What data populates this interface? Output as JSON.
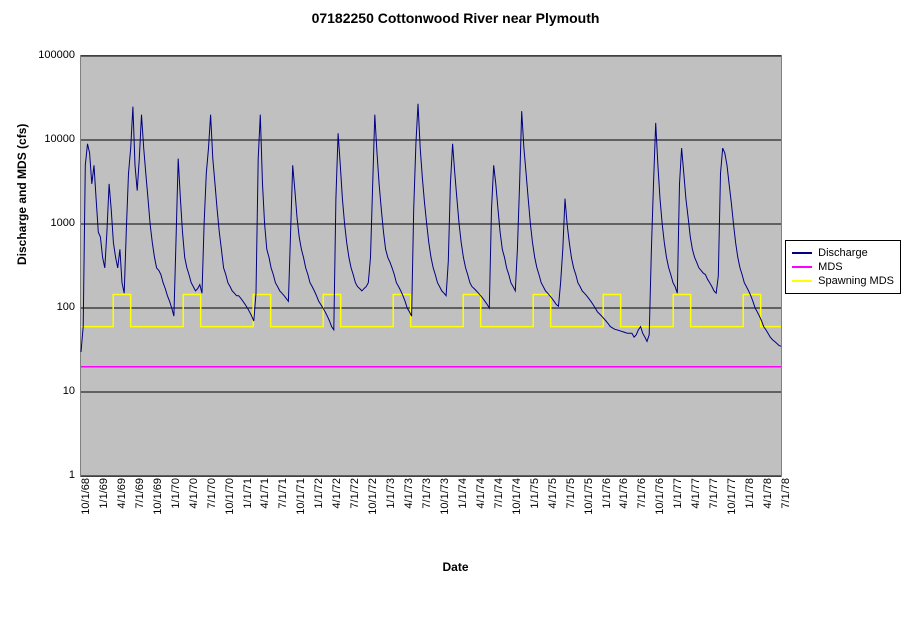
{
  "title": "07182250 Cottonwood River near Plymouth",
  "x_axis_label": "Date",
  "y_axis_label": "Discharge and MDS (cfs)",
  "background_color": "#ffffff",
  "plot_background_color": "#c0c0c0",
  "grid_color": "#000000",
  "title_fontsize": 14,
  "label_fontsize": 12,
  "tick_fontsize": 11,
  "y_scale": "log",
  "y_lim": [
    1,
    100000
  ],
  "y_ticks": [
    1,
    10,
    100,
    1000,
    10000,
    100000
  ],
  "y_tick_labels": [
    "1",
    "10",
    "100",
    "1000",
    "10000",
    "100000"
  ],
  "x_tick_labels": [
    "10/1/68",
    "1/1/69",
    "4/1/69",
    "7/1/69",
    "10/1/69",
    "1/1/70",
    "4/1/70",
    "7/1/70",
    "10/1/70",
    "1/1/71",
    "4/1/71",
    "7/1/71",
    "10/1/71",
    "1/1/72",
    "4/1/72",
    "7/1/72",
    "10/1/72",
    "1/1/73",
    "4/1/73",
    "7/1/73",
    "10/1/73",
    "1/1/74",
    "4/1/74",
    "7/1/74",
    "10/1/74",
    "1/1/75",
    "4/1/75",
    "7/1/75",
    "10/1/75",
    "1/1/76",
    "4/1/76",
    "7/1/76",
    "10/1/76",
    "1/1/77",
    "4/1/77",
    "7/1/77",
    "10/1/77",
    "1/1/78",
    "4/1/78",
    "7/1/78"
  ],
  "legend": {
    "items": [
      {
        "label": "Discharge",
        "color": "#000080"
      },
      {
        "label": "MDS",
        "color": "#ff00ff"
      },
      {
        "label": "Spawning MDS",
        "color": "#ffff00"
      }
    ]
  },
  "series": {
    "discharge": {
      "color": "#000080",
      "line_width": 1,
      "data": [
        30,
        60,
        5000,
        9000,
        7000,
        3000,
        5000,
        2000,
        800,
        700,
        400,
        300,
        800,
        3000,
        1500,
        600,
        400,
        300,
        500,
        200,
        150,
        900,
        4000,
        8000,
        25000,
        5000,
        2500,
        6000,
        20000,
        8000,
        4000,
        2000,
        1000,
        600,
        400,
        300,
        280,
        250,
        200,
        170,
        140,
        120,
        100,
        80,
        700,
        6000,
        2000,
        800,
        400,
        300,
        250,
        200,
        180,
        160,
        170,
        190,
        150,
        1000,
        4000,
        8000,
        20000,
        6000,
        3000,
        1500,
        800,
        500,
        300,
        250,
        200,
        180,
        160,
        150,
        140,
        140,
        130,
        120,
        110,
        100,
        90,
        80,
        70,
        150,
        6000,
        20000,
        3000,
        1000,
        500,
        400,
        300,
        250,
        200,
        180,
        160,
        150,
        140,
        130,
        120,
        800,
        5000,
        2500,
        1200,
        700,
        500,
        400,
        300,
        250,
        200,
        180,
        160,
        140,
        120,
        110,
        100,
        90,
        80,
        70,
        60,
        55,
        2000,
        12000,
        5000,
        2000,
        1000,
        600,
        400,
        300,
        250,
        200,
        180,
        170,
        160,
        170,
        180,
        200,
        400,
        3000,
        20000,
        7000,
        3000,
        1500,
        800,
        500,
        400,
        350,
        300,
        250,
        200,
        180,
        160,
        140,
        120,
        100,
        90,
        80,
        1500,
        9000,
        27000,
        8000,
        3500,
        1800,
        1000,
        600,
        400,
        300,
        250,
        200,
        180,
        160,
        150,
        140,
        360,
        3000,
        9000,
        4000,
        2000,
        1000,
        600,
        400,
        300,
        250,
        200,
        180,
        170,
        160,
        150,
        140,
        130,
        120,
        110,
        100,
        1500,
        5000,
        3000,
        1500,
        800,
        500,
        400,
        300,
        250,
        200,
        180,
        160,
        500,
        3000,
        22000,
        8000,
        4000,
        2000,
        1000,
        600,
        400,
        300,
        250,
        200,
        180,
        160,
        150,
        140,
        130,
        120,
        110,
        105,
        200,
        500,
        2000,
        1000,
        600,
        400,
        300,
        250,
        200,
        180,
        160,
        150,
        140,
        130,
        120,
        110,
        100,
        90,
        85,
        80,
        75,
        70,
        65,
        60,
        58,
        56,
        55,
        54,
        53,
        52,
        51,
        50,
        50,
        50,
        45,
        48,
        55,
        60,
        50,
        45,
        40,
        48,
        500,
        3000,
        16000,
        5000,
        2000,
        1000,
        600,
        400,
        300,
        250,
        200,
        180,
        150,
        3000,
        8000,
        4000,
        2000,
        1200,
        700,
        500,
        400,
        350,
        300,
        280,
        260,
        250,
        220,
        200,
        180,
        160,
        150,
        240,
        4000,
        8000,
        7000,
        5000,
        3000,
        1800,
        1000,
        600,
        400,
        300,
        250,
        200,
        180,
        160,
        140,
        120,
        100,
        90,
        80,
        70,
        60,
        55,
        50,
        45,
        42,
        40,
        38,
        36,
        35
      ]
    },
    "mds": {
      "color": "#ff00ff",
      "line_width": 1.5,
      "value": 20
    },
    "spawning_mds": {
      "color": "#ffff00",
      "line_width": 1.5,
      "low": 60,
      "high": 145,
      "segments": [
        [
          0.0,
          0.046,
          60
        ],
        [
          0.046,
          0.071,
          145
        ],
        [
          0.071,
          0.1,
          60
        ],
        [
          0.1,
          0.146,
          60
        ],
        [
          0.146,
          0.171,
          145
        ],
        [
          0.171,
          0.2,
          60
        ],
        [
          0.2,
          0.246,
          60
        ],
        [
          0.246,
          0.271,
          145
        ],
        [
          0.271,
          0.3,
          60
        ],
        [
          0.3,
          0.346,
          60
        ],
        [
          0.346,
          0.371,
          145
        ],
        [
          0.371,
          0.4,
          60
        ],
        [
          0.4,
          0.446,
          60
        ],
        [
          0.446,
          0.471,
          145
        ],
        [
          0.471,
          0.5,
          60
        ],
        [
          0.5,
          0.546,
          60
        ],
        [
          0.546,
          0.571,
          145
        ],
        [
          0.571,
          0.6,
          60
        ],
        [
          0.6,
          0.646,
          60
        ],
        [
          0.646,
          0.671,
          145
        ],
        [
          0.671,
          0.7,
          60
        ],
        [
          0.7,
          0.746,
          60
        ],
        [
          0.746,
          0.771,
          145
        ],
        [
          0.771,
          0.8,
          60
        ],
        [
          0.8,
          0.846,
          60
        ],
        [
          0.846,
          0.871,
          145
        ],
        [
          0.871,
          0.9,
          60
        ],
        [
          0.9,
          0.946,
          60
        ],
        [
          0.946,
          0.971,
          145
        ],
        [
          0.971,
          1.0,
          60
        ]
      ]
    }
  }
}
